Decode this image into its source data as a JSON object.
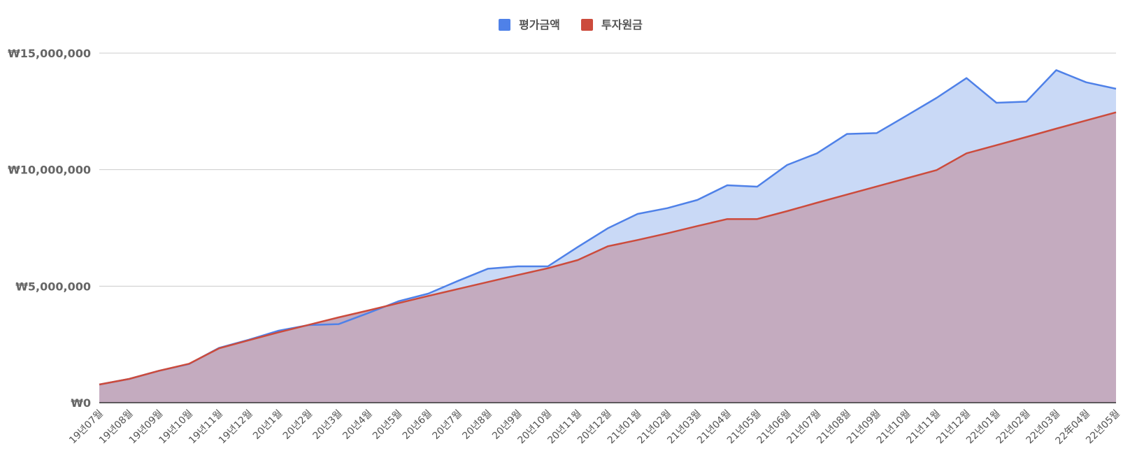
{
  "chart_data": {
    "type": "area",
    "legend_position": "top-center",
    "grid": true,
    "ylim": [
      0,
      15000000
    ],
    "yticks": [
      {
        "value": 0,
        "label": "₩0"
      },
      {
        "value": 5000000,
        "label": "₩5,000,000"
      },
      {
        "value": 10000000,
        "label": "₩10,000,000"
      },
      {
        "value": 15000000,
        "label": "₩15,000,000"
      }
    ],
    "categories": [
      "19년07월",
      "19년08월",
      "19년09월",
      "19년10월",
      "19년11월",
      "19년12월",
      "20년1월",
      "20년2월",
      "20년3월",
      "20년4월",
      "20년5월",
      "20년6월",
      "20년7월",
      "20년8월",
      "20년9월",
      "20년10월",
      "20년11월",
      "20년12월",
      "21년01월",
      "21년02월",
      "21년03월",
      "21년04월",
      "21년05월",
      "21년06월",
      "21년07월",
      "21년08월",
      "21년09월",
      "21년10월",
      "21년11월",
      "21년12월",
      "22년01월",
      "22년02월",
      "22년03월",
      "22年04월",
      "22년05월"
    ],
    "series": [
      {
        "name": "평가금액",
        "color": "#4f81e8",
        "fill": "#c9d9f6",
        "values": [
          780000,
          1020000,
          1370000,
          1660000,
          2350000,
          2700000,
          3090000,
          3330000,
          3370000,
          3850000,
          4350000,
          4680000,
          5230000,
          5750000,
          5850000,
          5850000,
          6680000,
          7480000,
          8100000,
          8350000,
          8700000,
          9330000,
          9270000,
          10200000,
          10700000,
          11530000,
          11570000,
          12320000,
          13080000,
          13930000,
          12870000,
          12920000,
          14270000,
          13750000,
          13470000
        ]
      },
      {
        "name": "투자원금",
        "color": "#cc4b3c",
        "fill": "#c4abbf",
        "values": [
          780000,
          1020000,
          1370000,
          1670000,
          2330000,
          2680000,
          3020000,
          3340000,
          3660000,
          3960000,
          4270000,
          4580000,
          4880000,
          5180000,
          5480000,
          5770000,
          6120000,
          6710000,
          6980000,
          7270000,
          7580000,
          7880000,
          7880000,
          8220000,
          8580000,
          8930000,
          9280000,
          9630000,
          9980000,
          10700000,
          11050000,
          11400000,
          11760000,
          12110000,
          12460000
        ]
      }
    ]
  }
}
